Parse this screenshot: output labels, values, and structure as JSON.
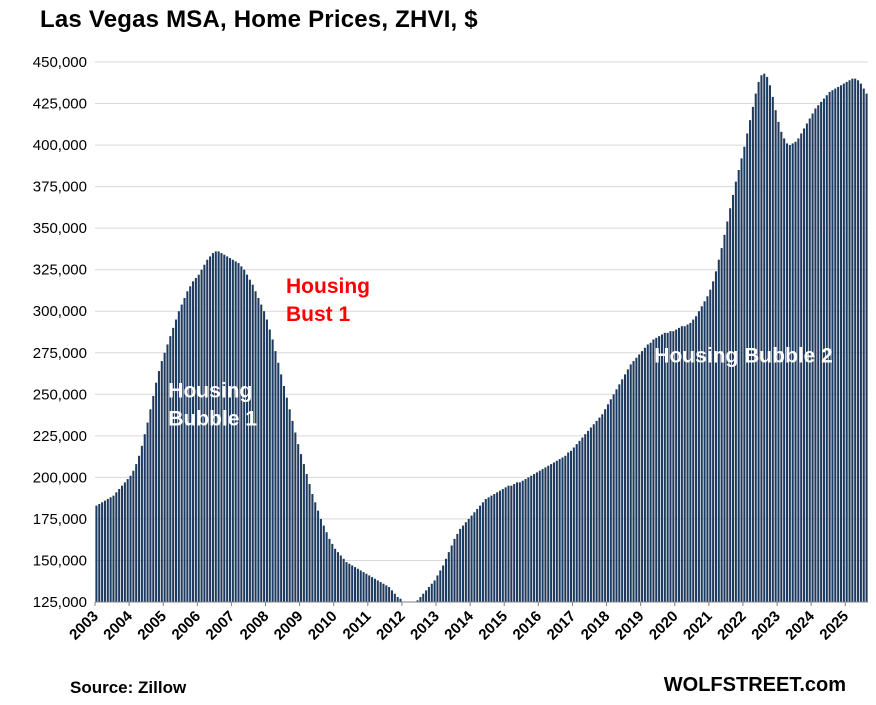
{
  "chart_data": {
    "type": "bar",
    "title": "Las Vegas  MSA, Home Prices, ZHVI, $",
    "source": "Source: Zillow",
    "brand": "WOLFSTREET.com",
    "xlabel": "",
    "ylabel": "",
    "ylim": [
      125000,
      450000
    ],
    "ytick_step": 25000,
    "grid": true,
    "grid_color": "#d9d9d9",
    "axis_color": "#808080",
    "bar_color": "#1e3a5f",
    "start_year": 2003,
    "start_month": 1,
    "x_tick_years": [
      2003,
      2004,
      2005,
      2006,
      2007,
      2008,
      2009,
      2010,
      2011,
      2012,
      2013,
      2014,
      2015,
      2016,
      2017,
      2018,
      2019,
      2020,
      2021,
      2022,
      2023,
      2024,
      2025
    ],
    "values": [
      183000,
      184000,
      185000,
      186000,
      187000,
      188000,
      189000,
      191000,
      193000,
      195000,
      197000,
      199000,
      201000,
      204000,
      208000,
      213000,
      219000,
      226000,
      233000,
      241000,
      249000,
      257000,
      264000,
      270000,
      275000,
      280000,
      285000,
      290000,
      295000,
      300000,
      304000,
      308000,
      312000,
      315000,
      318000,
      320000,
      322000,
      325000,
      328000,
      331000,
      333000,
      335000,
      336000,
      336000,
      335000,
      334000,
      333000,
      332000,
      331000,
      330000,
      329000,
      327000,
      325000,
      322000,
      319000,
      316000,
      312000,
      308000,
      304000,
      300000,
      295000,
      289000,
      283000,
      276000,
      269000,
      262000,
      255000,
      248000,
      241000,
      234000,
      227000,
      220000,
      214000,
      208000,
      202000,
      196000,
      190000,
      185000,
      180000,
      175000,
      171000,
      167000,
      163000,
      160000,
      157000,
      155000,
      153000,
      151000,
      149000,
      148000,
      147000,
      146000,
      145000,
      144000,
      143000,
      142000,
      141000,
      140000,
      139000,
      138000,
      137000,
      136000,
      135000,
      134000,
      132000,
      130000,
      128000,
      127000,
      125000,
      124000,
      123000,
      123000,
      124000,
      126000,
      128000,
      130000,
      132000,
      134000,
      136000,
      138000,
      141000,
      144000,
      147000,
      151000,
      155000,
      159000,
      163000,
      166000,
      169000,
      171000,
      173000,
      175000,
      177000,
      179000,
      181000,
      183000,
      185000,
      187000,
      188000,
      189000,
      190000,
      191000,
      192000,
      193000,
      194000,
      195000,
      195000,
      196000,
      197000,
      197000,
      198000,
      199000,
      200000,
      201000,
      202000,
      203000,
      204000,
      205000,
      206000,
      207000,
      208000,
      209000,
      210000,
      211000,
      212000,
      213000,
      215000,
      216000,
      218000,
      220000,
      222000,
      224000,
      226000,
      228000,
      230000,
      232000,
      234000,
      236000,
      238000,
      241000,
      244000,
      247000,
      250000,
      253000,
      256000,
      259000,
      262000,
      265000,
      268000,
      270000,
      272000,
      274000,
      276000,
      278000,
      280000,
      281000,
      283000,
      284000,
      285000,
      286000,
      287000,
      287000,
      288000,
      288000,
      289000,
      290000,
      291000,
      291000,
      292000,
      293000,
      295000,
      297000,
      300000,
      303000,
      306000,
      309000,
      313000,
      318000,
      324000,
      331000,
      338000,
      346000,
      354000,
      362000,
      370000,
      378000,
      385000,
      392000,
      399000,
      407000,
      415000,
      423000,
      431000,
      438000,
      442000,
      443000,
      441000,
      436000,
      429000,
      421000,
      414000,
      408000,
      404000,
      401000,
      400000,
      401000,
      402000,
      404000,
      407000,
      410000,
      413000,
      416000,
      419000,
      422000,
      424000,
      426000,
      428000,
      430000,
      432000,
      433000,
      434000,
      435000,
      436000,
      437000,
      438000,
      439000,
      440000,
      440000,
      439000,
      437000,
      434000,
      431000
    ],
    "annotations": [
      {
        "lines": [
          "Housing",
          "Bubble 1"
        ],
        "color": "#ffffff",
        "x_year": 2005.15,
        "y_value": 248000
      },
      {
        "lines": [
          "Housing",
          "Bust 1"
        ],
        "color": "#ff0000",
        "x_year": 2008.6,
        "y_value": 311000
      },
      {
        "lines": [
          "Housing Bubble 2"
        ],
        "color": "#ffffff",
        "x_year": 2019.4,
        "y_value": 269000
      }
    ]
  }
}
